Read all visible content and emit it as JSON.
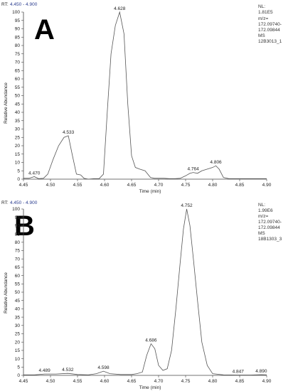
{
  "chart_data": [
    {
      "type": "line",
      "panel_letter": "A",
      "rt_prefix": "RT:",
      "rt_range": "4.450 - 4.900",
      "xlabel": "Time (min)",
      "ylabel": "Relative Abundance",
      "xlim": [
        4.45,
        4.9
      ],
      "ylim": [
        0,
        100
      ],
      "x_ticks": [
        "4.45",
        "4.50",
        "4.55",
        "4.60",
        "4.65",
        "4.70",
        "4.75",
        "4.80",
        "4.85",
        "4.90"
      ],
      "y_ticks": [
        "0",
        "5",
        "10",
        "15",
        "20",
        "25",
        "30",
        "35",
        "40",
        "45",
        "50",
        "55",
        "60",
        "65",
        "70",
        "75",
        "80",
        "85",
        "90",
        "95",
        "100"
      ],
      "info": [
        "NL:",
        "1.81E5",
        "m/z=",
        "172.09740-",
        "172.09844",
        "MS",
        "12B3013_1"
      ],
      "peak_labels": [
        {
          "x": 4.47,
          "y": 1.5,
          "text": "4.470"
        },
        {
          "x": 4.533,
          "y": 26,
          "text": "4.533"
        },
        {
          "x": 4.628,
          "y": 100,
          "text": "4.628"
        },
        {
          "x": 4.764,
          "y": 4,
          "text": "4.764"
        },
        {
          "x": 4.806,
          "y": 8,
          "text": "4.806"
        }
      ],
      "series": [
        {
          "x": [
            4.45,
            4.46,
            4.47,
            4.478,
            4.487,
            4.495,
            4.505,
            4.515,
            4.525,
            4.533,
            4.54,
            4.548,
            4.556,
            4.562,
            4.57,
            4.58,
            4.59,
            4.598,
            4.605,
            4.612,
            4.62,
            4.628,
            4.636,
            4.643,
            4.65,
            4.657,
            4.665,
            4.675,
            4.685,
            4.692,
            4.7,
            4.71,
            4.72,
            4.73,
            4.74,
            4.75,
            4.758,
            4.764,
            4.772,
            4.78,
            4.79,
            4.8,
            4.806,
            4.812,
            4.82,
            4.83,
            4.845,
            4.86,
            4.88,
            4.9
          ],
          "y": [
            0.5,
            0.5,
            1.5,
            0.3,
            0.5,
            3,
            12,
            20,
            25,
            26,
            15,
            3,
            2.5,
            0.5,
            0,
            0.3,
            0.3,
            3,
            40,
            75,
            92,
            100,
            87,
            45,
            14,
            7,
            6,
            5,
            1,
            0.5,
            0.5,
            0.5,
            0.3,
            0.3,
            0.5,
            2,
            3.5,
            4,
            3.5,
            5,
            6,
            7,
            8,
            6,
            1,
            0.3,
            0.3,
            0.3,
            0.3,
            0.3
          ]
        }
      ]
    },
    {
      "type": "line",
      "panel_letter": "B",
      "rt_prefix": "RT:",
      "rt_range": "4.450 - 4.900",
      "xlabel": "Time (min)",
      "ylabel": "Relative Abundance",
      "xlim": [
        4.45,
        4.9
      ],
      "ylim": [
        0,
        100
      ],
      "x_ticks": [
        "4.45",
        "4.50",
        "4.55",
        "4.60",
        "4.65",
        "4.70",
        "4.75",
        "4.80",
        "4.85",
        "4.90"
      ],
      "y_ticks": [
        "0",
        "5",
        "10",
        "15",
        "20",
        "25",
        "30",
        "35",
        "40",
        "45",
        "50",
        "55",
        "60",
        "65",
        "70",
        "75",
        "80",
        "85",
        "90",
        "95",
        "100"
      ],
      "info": [
        "NL:",
        "1.99E6",
        "m/z=",
        "172.09740-",
        "172.09844",
        "MS",
        "18B1303_3"
      ],
      "peak_labels": [
        {
          "x": 4.489,
          "y": 0.8,
          "text": "4.489"
        },
        {
          "x": 4.532,
          "y": 1.2,
          "text": "4.532"
        },
        {
          "x": 4.598,
          "y": 2.5,
          "text": "4.598"
        },
        {
          "x": 4.686,
          "y": 19,
          "text": "4.686"
        },
        {
          "x": 4.752,
          "y": 100,
          "text": "4.752"
        },
        {
          "x": 4.847,
          "y": 0.2,
          "text": "4.847"
        },
        {
          "x": 4.89,
          "y": 0.4,
          "text": "4.890"
        }
      ],
      "series": [
        {
          "x": [
            4.45,
            4.47,
            4.489,
            4.51,
            4.532,
            4.55,
            4.57,
            4.585,
            4.598,
            4.61,
            4.63,
            4.65,
            4.66,
            4.67,
            4.678,
            4.686,
            4.693,
            4.7,
            4.708,
            4.716,
            4.724,
            4.732,
            4.74,
            4.746,
            4.752,
            4.758,
            4.765,
            4.772,
            4.78,
            4.79,
            4.8,
            4.82,
            4.847,
            4.87,
            4.89,
            4.9
          ],
          "y": [
            0.3,
            0.3,
            0.8,
            0.8,
            1.2,
            0.5,
            0.3,
            1,
            2.5,
            1,
            0.5,
            0.5,
            1,
            2,
            12,
            19,
            16,
            6,
            3,
            4,
            15,
            40,
            68,
            88,
            100,
            90,
            68,
            45,
            20,
            6,
            1,
            0.3,
            0.2,
            0.2,
            0.4,
            0.3
          ]
        }
      ]
    }
  ]
}
